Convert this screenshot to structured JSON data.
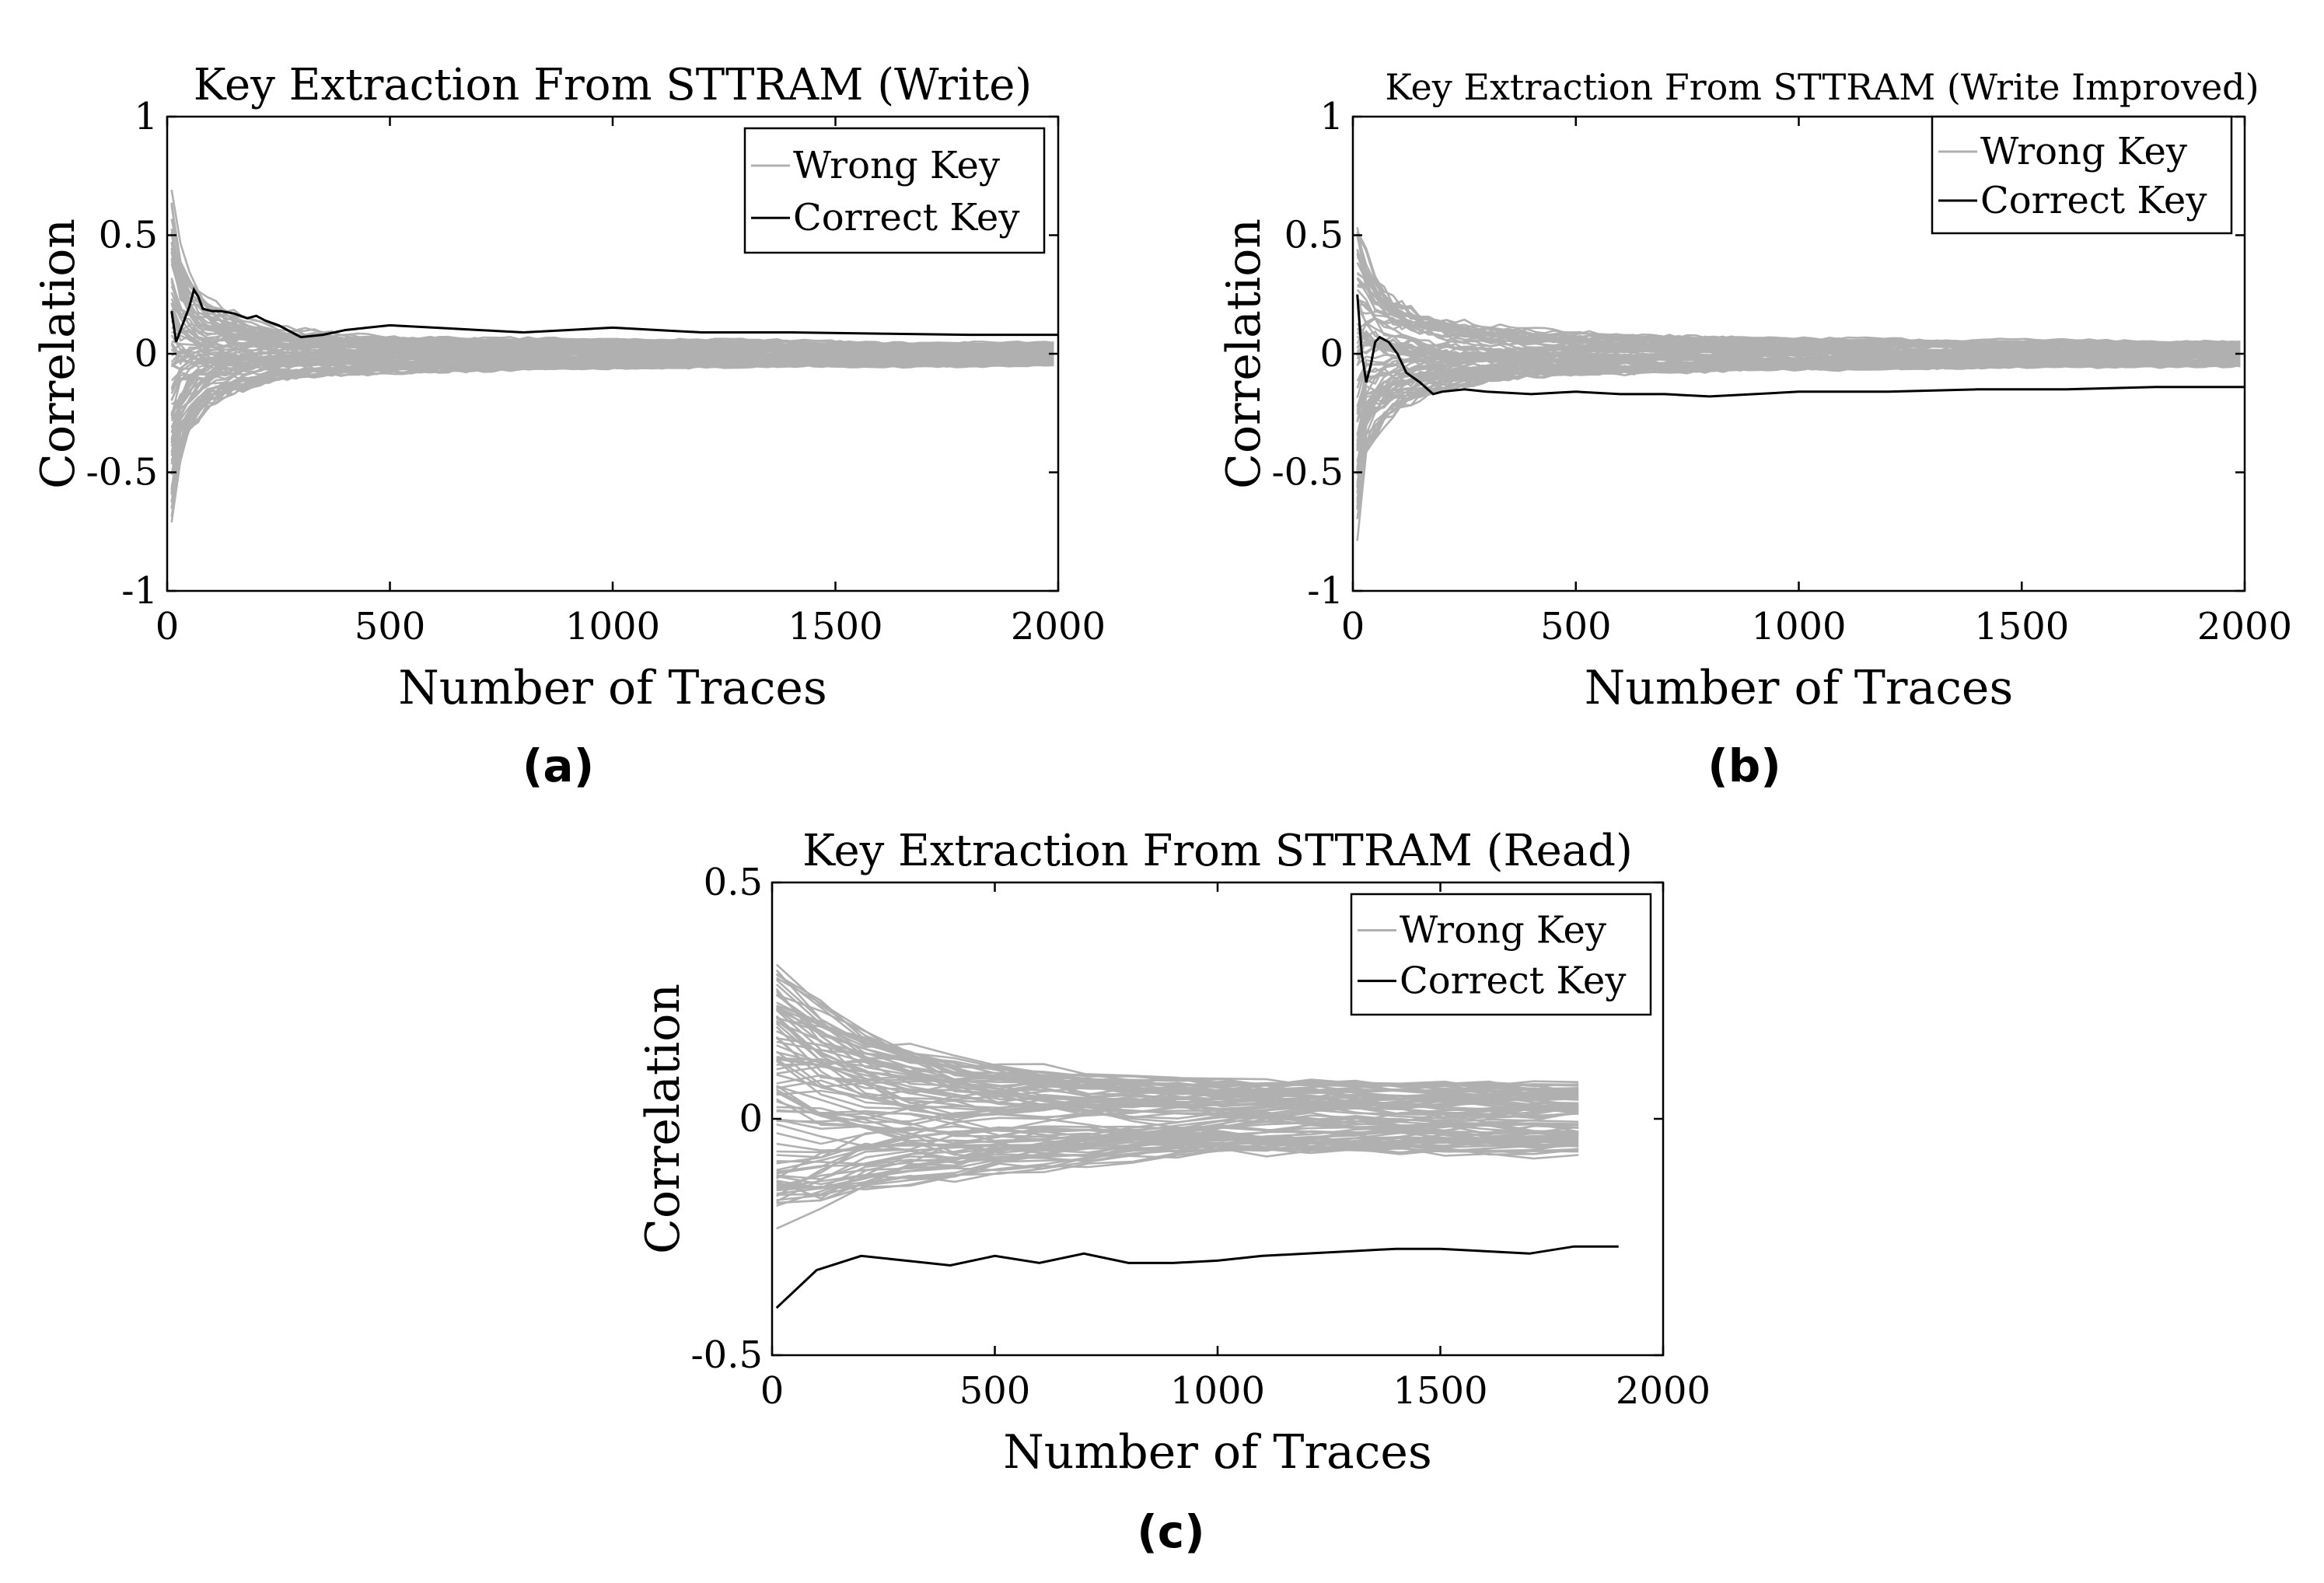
{
  "chart_data": [
    {
      "id": "a",
      "type": "line",
      "panel_label": "(a)",
      "title": "Key Extraction From STTRAM (Write)",
      "xlabel": "Number of Traces",
      "ylabel": "Correlation",
      "xlim": [
        0,
        2000
      ],
      "ylim": [
        -1,
        1
      ],
      "xticks": [
        "0",
        "500",
        "1000",
        "1500",
        "2000"
      ],
      "yticks": [
        "-1",
        "-0.5",
        "0",
        "0.5",
        "1"
      ],
      "grid": false,
      "legend_position": "top-right",
      "series": [
        {
          "name": "Wrong Key",
          "color": "#b0b0b0",
          "kind": "band",
          "x": [
            10,
            20,
            40,
            60,
            80,
            100,
            150,
            200,
            250,
            300,
            400,
            500,
            600,
            800,
            1000,
            1200,
            1400,
            1600,
            1800,
            2000
          ],
          "upper": [
            0.85,
            0.6,
            0.45,
            0.36,
            0.3,
            0.26,
            0.21,
            0.17,
            0.14,
            0.13,
            0.11,
            0.1,
            0.09,
            0.08,
            0.075,
            0.07,
            0.068,
            0.065,
            0.062,
            0.06
          ],
          "lower": [
            -0.84,
            -0.6,
            -0.45,
            -0.36,
            -0.3,
            -0.26,
            -0.21,
            -0.17,
            -0.14,
            -0.13,
            -0.11,
            -0.1,
            -0.09,
            -0.08,
            -0.075,
            -0.07,
            -0.068,
            -0.065,
            -0.062,
            -0.06
          ]
        },
        {
          "name": "Correct Key",
          "color": "#000000",
          "kind": "line",
          "x": [
            10,
            20,
            30,
            40,
            50,
            60,
            70,
            80,
            100,
            120,
            150,
            180,
            200,
            220,
            250,
            300,
            350,
            400,
            450,
            500,
            600,
            700,
            800,
            900,
            1000,
            1100,
            1200,
            1400,
            1600,
            1800,
            2000
          ],
          "y": [
            0.18,
            0.05,
            0.1,
            0.15,
            0.2,
            0.27,
            0.24,
            0.19,
            0.18,
            0.18,
            0.17,
            0.15,
            0.16,
            0.14,
            0.12,
            0.07,
            0.08,
            0.1,
            0.11,
            0.12,
            0.11,
            0.1,
            0.09,
            0.1,
            0.11,
            0.1,
            0.09,
            0.09,
            0.085,
            0.08,
            0.08
          ]
        }
      ]
    },
    {
      "id": "b",
      "type": "line",
      "panel_label": "(b)",
      "title": "Key Extraction From STTRAM (Write Improved)",
      "xlabel": "Number of Traces",
      "ylabel": "Correlation",
      "xlim": [
        0,
        2000
      ],
      "ylim": [
        -1,
        1
      ],
      "xticks": [
        "0",
        "500",
        "1000",
        "1500",
        "2000"
      ],
      "yticks": [
        "-1",
        "-0.5",
        "0",
        "0.5",
        "1"
      ],
      "grid": false,
      "legend_position": "top-right",
      "series": [
        {
          "name": "Wrong Key",
          "color": "#b0b0b0",
          "kind": "band",
          "x": [
            10,
            20,
            40,
            60,
            80,
            100,
            150,
            200,
            250,
            300,
            400,
            500,
            600,
            800,
            1000,
            1200,
            1400,
            1600,
            1800,
            2000
          ],
          "upper": [
            0.7,
            0.55,
            0.45,
            0.38,
            0.32,
            0.28,
            0.22,
            0.18,
            0.16,
            0.14,
            0.12,
            0.11,
            0.1,
            0.09,
            0.08,
            0.075,
            0.07,
            0.068,
            0.066,
            0.065
          ],
          "lower": [
            -0.84,
            -0.55,
            -0.45,
            -0.38,
            -0.32,
            -0.28,
            -0.22,
            -0.18,
            -0.16,
            -0.14,
            -0.12,
            -0.11,
            -0.1,
            -0.09,
            -0.08,
            -0.075,
            -0.07,
            -0.068,
            -0.066,
            -0.065
          ]
        },
        {
          "name": "Correct Key",
          "color": "#000000",
          "kind": "line",
          "x": [
            10,
            20,
            30,
            40,
            50,
            60,
            70,
            80,
            100,
            120,
            150,
            180,
            200,
            250,
            300,
            400,
            500,
            600,
            700,
            800,
            900,
            1000,
            1200,
            1400,
            1600,
            1800,
            2000
          ],
          "y": [
            0.25,
            0.0,
            -0.12,
            -0.05,
            0.05,
            0.07,
            0.06,
            0.05,
            0.0,
            -0.08,
            -0.12,
            -0.17,
            -0.16,
            -0.15,
            -0.16,
            -0.17,
            -0.16,
            -0.17,
            -0.17,
            -0.18,
            -0.17,
            -0.16,
            -0.16,
            -0.15,
            -0.15,
            -0.14,
            -0.14
          ]
        }
      ]
    },
    {
      "id": "c",
      "type": "line",
      "panel_label": "(c)",
      "title": "Key Extraction From STTRAM (Read)",
      "xlabel": "Number of Traces",
      "ylabel": "Correlation",
      "xlim": [
        0,
        2000
      ],
      "ylim": [
        -0.5,
        0.5
      ],
      "xticks": [
        "0",
        "500",
        "1000",
        "1500",
        "2000"
      ],
      "yticks": [
        "-0.5",
        "0",
        "0.5"
      ],
      "grid": false,
      "legend_position": "top-right",
      "series": [
        {
          "name": "Wrong Key",
          "color": "#b0b0b0",
          "kind": "band",
          "x": [
            10,
            100,
            200,
            300,
            400,
            500,
            600,
            700,
            800,
            900,
            1000,
            1200,
            1400,
            1600,
            1800,
            1900
          ],
          "upper": [
            0.37,
            0.3,
            0.23,
            0.19,
            0.16,
            0.14,
            0.13,
            0.12,
            0.11,
            0.105,
            0.1,
            0.1,
            0.095,
            0.095,
            0.09,
            0.09
          ],
          "lower": [
            -0.3,
            -0.27,
            -0.21,
            -0.18,
            -0.16,
            -0.14,
            -0.13,
            -0.12,
            -0.11,
            -0.105,
            -0.1,
            -0.1,
            -0.095,
            -0.095,
            -0.09,
            -0.09
          ]
        },
        {
          "name": "Correct Key",
          "color": "#000000",
          "kind": "line",
          "x": [
            10,
            100,
            200,
            300,
            400,
            500,
            600,
            700,
            800,
            900,
            1000,
            1100,
            1200,
            1300,
            1400,
            1500,
            1600,
            1700,
            1800,
            1900
          ],
          "y": [
            -0.4,
            -0.32,
            -0.29,
            -0.3,
            -0.31,
            -0.29,
            -0.305,
            -0.285,
            -0.305,
            -0.305,
            -0.3,
            -0.29,
            -0.285,
            -0.28,
            -0.275,
            -0.275,
            -0.28,
            -0.285,
            -0.27,
            -0.27
          ]
        }
      ]
    }
  ]
}
